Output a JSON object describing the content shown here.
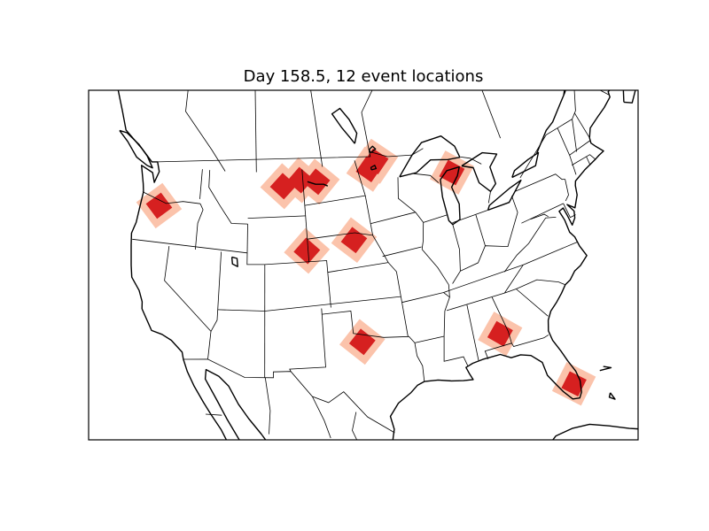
{
  "title": "Day 158.5, 12 event locations",
  "map": {
    "region": "North America (contiguous United States)",
    "colors": {
      "event_core": "#d62020",
      "event_halo": "#fbc3ab",
      "coastline": "#000000",
      "borders": "#000000",
      "background": "#ffffff"
    },
    "events": [
      {
        "lon": -121.8,
        "lat": 45.3
      },
      {
        "lon": -106.6,
        "lat": 47.7
      },
      {
        "lon": -104.4,
        "lat": 48.1
      },
      {
        "lon": -102.3,
        "lat": 47.8
      },
      {
        "lon": -95.6,
        "lat": 48.0
      },
      {
        "lon": -94.6,
        "lat": 48.5
      },
      {
        "lon": -86.0,
        "lat": 45.6
      },
      {
        "lon": -104.2,
        "lat": 42.0
      },
      {
        "lon": -98.7,
        "lat": 42.4
      },
      {
        "lon": -99.2,
        "lat": 33.8
      },
      {
        "lon": -85.8,
        "lat": 32.0
      },
      {
        "lon": -80.7,
        "lat": 26.4
      }
    ]
  }
}
